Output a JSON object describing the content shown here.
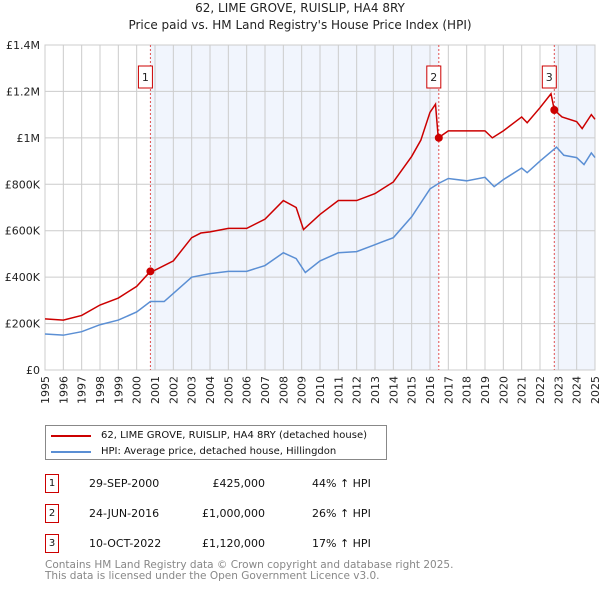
{
  "chart_data": {
    "type": "line",
    "title": "62, LIME GROVE, RUISLIP, HA4 8RY",
    "subtitle": "Price paid vs. HM Land Registry's House Price Index (HPI)",
    "xlim": [
      1995,
      2025
    ],
    "ylim": [
      0,
      1400000
    ],
    "x_ticks": [
      "1995",
      "1996",
      "1997",
      "1998",
      "1999",
      "2000",
      "2001",
      "2002",
      "2003",
      "2004",
      "2005",
      "2006",
      "2007",
      "2008",
      "2009",
      "2010",
      "2011",
      "2012",
      "2013",
      "2014",
      "2015",
      "2016",
      "2017",
      "2018",
      "2019",
      "2020",
      "2021",
      "2022",
      "2023",
      "2024",
      "2025"
    ],
    "y_ticks": [
      {
        "v": 0,
        "label": "£0"
      },
      {
        "v": 200000,
        "label": "£200K"
      },
      {
        "v": 400000,
        "label": "£400K"
      },
      {
        "v": 600000,
        "label": "£600K"
      },
      {
        "v": 800000,
        "label": "£800K"
      },
      {
        "v": 1000000,
        "label": "£1M"
      },
      {
        "v": 1200000,
        "label": "£1.2M"
      },
      {
        "v": 1400000,
        "label": "£1.4M"
      }
    ],
    "grid": true,
    "series": [
      {
        "name": "62, LIME GROVE, RUISLIP, HA4 8RY (detached house)",
        "color": "#cc0000",
        "x": [
          1995,
          1996,
          1997,
          1998,
          1999,
          2000,
          2000.75,
          2001,
          2002,
          2003,
          2003.5,
          2004,
          2005,
          2006,
          2007,
          2008,
          2008.7,
          2009.1,
          2010,
          2011,
          2012,
          2013,
          2014,
          2015,
          2015.5,
          2016,
          2016.3,
          2016.45,
          2017,
          2018,
          2019,
          2019.4,
          2020,
          2021,
          2021.3,
          2022,
          2022.6,
          2022.78,
          2023.2,
          2024,
          2024.3,
          2024.8,
          2025
        ],
        "y": [
          220000,
          215000,
          235000,
          280000,
          310000,
          360000,
          425000,
          430000,
          470000,
          570000,
          590000,
          595000,
          610000,
          610000,
          650000,
          730000,
          700000,
          605000,
          670000,
          730000,
          730000,
          760000,
          810000,
          920000,
          990000,
          1110000,
          1145000,
          1000000,
          1030000,
          1030000,
          1030000,
          1000000,
          1030000,
          1090000,
          1065000,
          1130000,
          1190000,
          1120000,
          1090000,
          1070000,
          1040000,
          1100000,
          1080000
        ]
      },
      {
        "name": "HPI: Average price, detached house, Hillingdon",
        "color": "#5b8fd4",
        "x": [
          1995,
          1996,
          1997,
          1998,
          1999,
          2000,
          2000.75,
          2001.5,
          2002,
          2003,
          2004,
          2005,
          2006,
          2007,
          2008,
          2008.7,
          2009.2,
          2010,
          2011,
          2012,
          2013,
          2014,
          2015,
          2016,
          2016.5,
          2017,
          2018,
          2019,
          2019.5,
          2020,
          2021,
          2021.3,
          2022,
          2022.9,
          2023.3,
          2024,
          2024.4,
          2024.8,
          2025
        ],
        "y": [
          155000,
          150000,
          165000,
          195000,
          215000,
          250000,
          295000,
          295000,
          330000,
          400000,
          415000,
          425000,
          425000,
          450000,
          505000,
          480000,
          420000,
          470000,
          505000,
          510000,
          540000,
          570000,
          660000,
          780000,
          805000,
          825000,
          815000,
          830000,
          790000,
          820000,
          870000,
          850000,
          900000,
          960000,
          925000,
          915000,
          885000,
          935000,
          915000
        ]
      }
    ],
    "sales": [
      {
        "n": "1",
        "x": 2000.75,
        "y": 425000,
        "date": "29-SEP-2000",
        "price": "£425,000",
        "hpi": "44% ↑ HPI"
      },
      {
        "n": "2",
        "x": 2016.48,
        "y": 1000000,
        "date": "24-JUN-2016",
        "price": "£1,000,000",
        "hpi": "26% ↑ HPI"
      },
      {
        "n": "3",
        "x": 2022.78,
        "y": 1120000,
        "date": "10-OCT-2022",
        "price": "£1,120,000",
        "hpi": "17% ↑ HPI"
      }
    ],
    "legend_placement": "below"
  },
  "footer": {
    "line1": "Contains HM Land Registry data © Crown copyright and database right 2025.",
    "line2": "This data is licensed under the Open Government Licence v3.0."
  }
}
